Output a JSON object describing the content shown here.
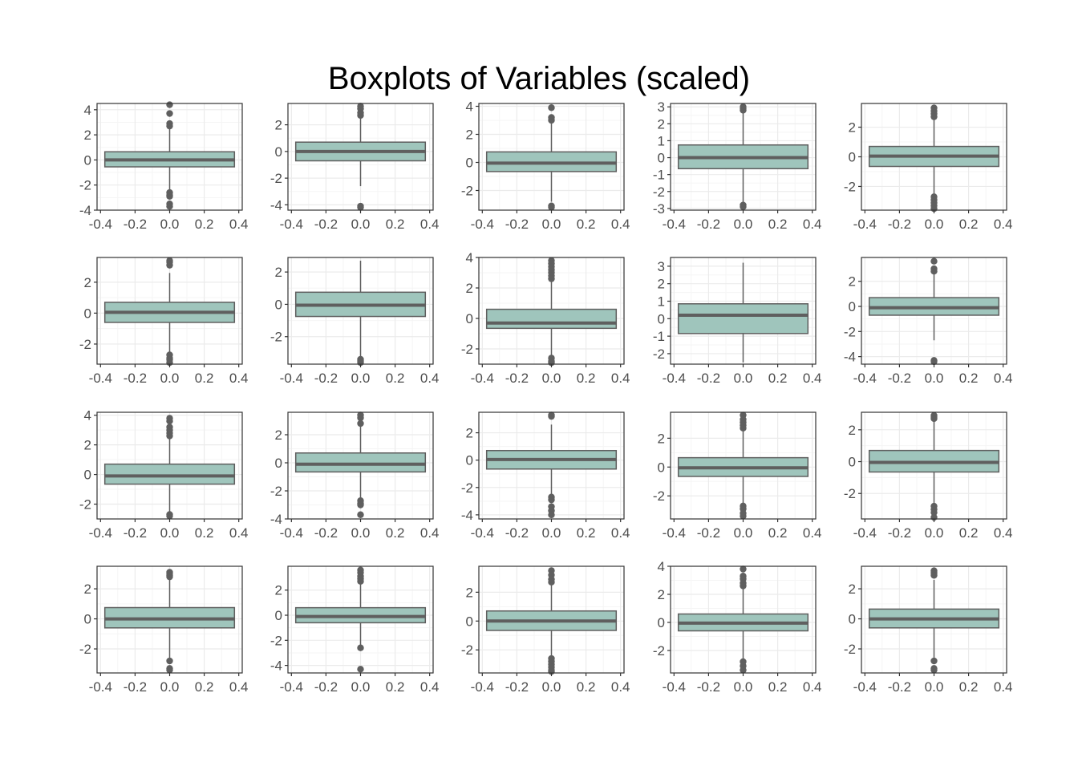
{
  "title": "Boxplots of Variables (scaled)",
  "colors": {
    "box_fill": "#9fc5bc",
    "box_stroke": "#5f5f5f",
    "panel_border": "#333333",
    "grid_major": "#ebebeb",
    "grid_minor": "#f5f5f5",
    "tick_label": "#4d4d4d"
  },
  "chart_data": [
    {
      "type": "boxplot",
      "x_ticks": [
        "-0.4",
        "-0.2",
        "0.0",
        "0.2",
        "0.4"
      ],
      "xlim": [
        -0.42,
        0.42
      ],
      "ylim": [
        -4.0,
        4.5
      ],
      "y_ticks": [
        -4,
        -2,
        0,
        2,
        4
      ],
      "y_tick_labels": [
        "-4",
        "-2",
        "0",
        "2",
        "4"
      ],
      "q1": -0.55,
      "median": 0.0,
      "q3": 0.65,
      "whisker_low": -2.5,
      "whisker_high": 2.5,
      "outliers": [
        4.4,
        3.7,
        2.9,
        2.7,
        -2.6,
        -2.8,
        -2.9,
        -3.5,
        -3.7
      ]
    },
    {
      "type": "boxplot",
      "x_ticks": [
        "-0.4",
        "-0.2",
        "0.0",
        "0.2",
        "0.4"
      ],
      "xlim": [
        -0.42,
        0.42
      ],
      "ylim": [
        -4.4,
        3.6
      ],
      "y_ticks": [
        -4,
        -2,
        0,
        2
      ],
      "y_tick_labels": [
        "-4",
        "-2",
        "0",
        "2"
      ],
      "q1": -0.7,
      "median": 0.0,
      "q3": 0.7,
      "whisker_low": -2.6,
      "whisker_high": 2.5,
      "outliers": [
        3.4,
        3.2,
        2.9,
        2.7,
        -4.1,
        -4.2
      ]
    },
    {
      "type": "boxplot",
      "x_ticks": [
        "-0.4",
        "-0.2",
        "0.0",
        "0.2",
        "0.4"
      ],
      "xlim": [
        -0.42,
        0.42
      ],
      "ylim": [
        -3.4,
        4.2
      ],
      "y_ticks": [
        -2,
        0,
        2,
        4
      ],
      "y_tick_labels": [
        "-2",
        "0",
        "2",
        "4"
      ],
      "q1": -0.65,
      "median": -0.05,
      "q3": 0.75,
      "whisker_low": -2.8,
      "whisker_high": 2.8,
      "outliers": [
        3.9,
        3.2,
        3.0,
        -3.1,
        -3.2
      ]
    },
    {
      "type": "boxplot",
      "x_ticks": [
        "-0.4",
        "-0.2",
        "0.0",
        "0.2",
        "0.4"
      ],
      "xlim": [
        -0.42,
        0.42
      ],
      "ylim": [
        -3.1,
        3.2
      ],
      "y_ticks": [
        -3,
        -2,
        -1,
        0,
        1,
        2,
        3
      ],
      "y_tick_labels": [
        "-3",
        "-2",
        "-1",
        "0",
        "1",
        "2",
        "3"
      ],
      "q1": -0.65,
      "median": 0.0,
      "q3": 0.75,
      "whisker_low": -2.7,
      "whisker_high": 2.7,
      "outliers": [
        3.0,
        2.9,
        2.8,
        -2.8,
        -2.9
      ]
    },
    {
      "type": "boxplot",
      "x_ticks": [
        "-0.4",
        "-0.2",
        "0.0",
        "0.2",
        "0.4"
      ],
      "xlim": [
        -0.42,
        0.42
      ],
      "ylim": [
        -3.6,
        3.6
      ],
      "y_ticks": [
        -2,
        0,
        2
      ],
      "y_tick_labels": [
        "-2",
        "0",
        "2"
      ],
      "q1": -0.65,
      "median": 0.05,
      "q3": 0.7,
      "whisker_low": -2.6,
      "whisker_high": 2.6,
      "outliers": [
        3.3,
        3.1,
        2.9,
        2.7,
        -2.7,
        -2.9,
        -3.1,
        -3.3,
        -3.5
      ]
    },
    {
      "type": "boxplot",
      "x_ticks": [
        "-0.4",
        "-0.2",
        "0.0",
        "0.2",
        "0.4"
      ],
      "xlim": [
        -0.42,
        0.42
      ],
      "ylim": [
        -3.3,
        3.6
      ],
      "y_ticks": [
        -2,
        0,
        2
      ],
      "y_tick_labels": [
        "-2",
        "0",
        "2"
      ],
      "q1": -0.6,
      "median": 0.05,
      "q3": 0.7,
      "whisker_low": -2.6,
      "whisker_high": 2.6,
      "outliers": [
        3.4,
        3.3,
        3.1,
        -2.7,
        -2.9,
        -3.0,
        -3.2
      ]
    },
    {
      "type": "boxplot",
      "x_ticks": [
        "-0.4",
        "-0.2",
        "0.0",
        "0.2",
        "0.4"
      ],
      "xlim": [
        -0.42,
        0.42
      ],
      "ylim": [
        -3.7,
        2.9
      ],
      "y_ticks": [
        -2,
        0,
        2
      ],
      "y_tick_labels": [
        "-2",
        "0",
        "2"
      ],
      "q1": -0.75,
      "median": -0.05,
      "q3": 0.75,
      "whisker_low": -3.3,
      "whisker_high": 2.7,
      "outliers": [
        -3.4,
        -3.5,
        -3.6
      ]
    },
    {
      "type": "boxplot",
      "x_ticks": [
        "-0.4",
        "-0.2",
        "0.0",
        "0.2",
        "0.4"
      ],
      "xlim": [
        -0.42,
        0.42
      ],
      "ylim": [
        -3.0,
        4.0
      ],
      "y_ticks": [
        -2,
        0,
        2,
        4
      ],
      "y_tick_labels": [
        "-2",
        "0",
        "2",
        "4"
      ],
      "q1": -0.65,
      "median": -0.3,
      "q3": 0.6,
      "whisker_low": -2.5,
      "whisker_high": 2.4,
      "outliers": [
        3.8,
        3.6,
        3.4,
        3.2,
        3.0,
        2.8,
        2.6,
        -2.6,
        -2.8,
        -2.9
      ]
    },
    {
      "type": "boxplot",
      "x_ticks": [
        "-0.4",
        "-0.2",
        "0.0",
        "0.2",
        "0.4"
      ],
      "xlim": [
        -0.42,
        0.42
      ],
      "ylim": [
        -2.6,
        3.5
      ],
      "y_ticks": [
        -2,
        -1,
        0,
        1,
        2,
        3
      ],
      "y_tick_labels": [
        "-2",
        "-1",
        "0",
        "1",
        "2",
        "3"
      ],
      "q1": -0.85,
      "median": 0.2,
      "q3": 0.85,
      "whisker_low": -2.5,
      "whisker_high": 3.2,
      "outliers": []
    },
    {
      "type": "boxplot",
      "x_ticks": [
        "-0.4",
        "-0.2",
        "0.0",
        "0.2",
        "0.4"
      ],
      "xlim": [
        -0.42,
        0.42
      ],
      "ylim": [
        -4.6,
        3.9
      ],
      "y_ticks": [
        -4,
        -2,
        0,
        2
      ],
      "y_tick_labels": [
        "-4",
        "-2",
        "0",
        "2"
      ],
      "q1": -0.7,
      "median": -0.1,
      "q3": 0.7,
      "whisker_low": -2.7,
      "whisker_high": 2.6,
      "outliers": [
        3.6,
        3.0,
        2.8,
        -4.3,
        -4.4
      ]
    },
    {
      "type": "boxplot",
      "x_ticks": [
        "-0.4",
        "-0.2",
        "0.0",
        "0.2",
        "0.4"
      ],
      "xlim": [
        -0.42,
        0.42
      ],
      "ylim": [
        -3.0,
        4.2
      ],
      "y_ticks": [
        -2,
        0,
        2,
        4
      ],
      "y_tick_labels": [
        "-2",
        "0",
        "2",
        "4"
      ],
      "q1": -0.65,
      "median": -0.1,
      "q3": 0.7,
      "whisker_low": -2.5,
      "whisker_high": 2.5,
      "outliers": [
        3.8,
        3.6,
        3.2,
        3.0,
        2.8,
        2.6,
        -2.7,
        -2.8
      ]
    },
    {
      "type": "boxplot",
      "x_ticks": [
        "-0.4",
        "-0.2",
        "0.0",
        "0.2",
        "0.4"
      ],
      "xlim": [
        -0.42,
        0.42
      ],
      "ylim": [
        -4.0,
        3.6
      ],
      "y_ticks": [
        -4,
        -2,
        0,
        2
      ],
      "y_tick_labels": [
        "-4",
        "-2",
        "0",
        "2"
      ],
      "q1": -0.65,
      "median": -0.1,
      "q3": 0.7,
      "whisker_low": -2.6,
      "whisker_high": 2.6,
      "outliers": [
        3.4,
        3.2,
        2.8,
        -2.7,
        -2.9,
        -3.0,
        -3.7
      ]
    },
    {
      "type": "boxplot",
      "x_ticks": [
        "-0.4",
        "-0.2",
        "0.0",
        "0.2",
        "0.4"
      ],
      "xlim": [
        -0.42,
        0.42
      ],
      "ylim": [
        -4.3,
        3.5
      ],
      "y_ticks": [
        -4,
        -2,
        0,
        2
      ],
      "y_tick_labels": [
        "-4",
        "-2",
        "0",
        "2"
      ],
      "q1": -0.65,
      "median": 0.05,
      "q3": 0.7,
      "whisker_low": -2.6,
      "whisker_high": 2.6,
      "outliers": [
        3.3,
        3.2,
        -2.7,
        -2.9,
        -3.4,
        -3.7,
        -4.0
      ]
    },
    {
      "type": "boxplot",
      "x_ticks": [
        "-0.4",
        "-0.2",
        "0.0",
        "0.2",
        "0.4"
      ],
      "xlim": [
        -0.42,
        0.42
      ],
      "ylim": [
        -3.6,
        3.8
      ],
      "y_ticks": [
        -2,
        0,
        2
      ],
      "y_tick_labels": [
        "-2",
        "0",
        "2"
      ],
      "q1": -0.65,
      "median": -0.05,
      "q3": 0.65,
      "whisker_low": -2.6,
      "whisker_high": 2.6,
      "outliers": [
        3.6,
        3.3,
        3.1,
        2.9,
        2.7,
        -2.7,
        -2.9,
        -3.2,
        -3.4
      ]
    },
    {
      "type": "boxplot",
      "x_ticks": [
        "-0.4",
        "-0.2",
        "0.0",
        "0.2",
        "0.4"
      ],
      "xlim": [
        -0.42,
        0.42
      ],
      "ylim": [
        -3.6,
        3.1
      ],
      "y_ticks": [
        -2,
        0,
        2
      ],
      "y_tick_labels": [
        "-2",
        "0",
        "2"
      ],
      "q1": -0.65,
      "median": -0.05,
      "q3": 0.7,
      "whisker_low": -2.6,
      "whisker_high": 2.6,
      "outliers": [
        2.9,
        2.8,
        2.7,
        -2.8,
        -3.0,
        -3.2,
        -3.5
      ]
    },
    {
      "type": "boxplot",
      "x_ticks": [
        "-0.4",
        "-0.2",
        "0.0",
        "0.2",
        "0.4"
      ],
      "xlim": [
        -0.42,
        0.42
      ],
      "ylim": [
        -3.6,
        3.5
      ],
      "y_ticks": [
        -2,
        0,
        2
      ],
      "y_tick_labels": [
        "-2",
        "0",
        "2"
      ],
      "q1": -0.6,
      "median": 0.0,
      "q3": 0.75,
      "whisker_low": -2.6,
      "whisker_high": 2.6,
      "outliers": [
        3.1,
        3.0,
        2.9,
        2.8,
        -2.8,
        -3.3,
        -3.4
      ]
    },
    {
      "type": "boxplot",
      "x_ticks": [
        "-0.4",
        "-0.2",
        "0.0",
        "0.2",
        "0.4"
      ],
      "xlim": [
        -0.42,
        0.42
      ],
      "ylim": [
        -4.6,
        3.9
      ],
      "y_ticks": [
        -4,
        -2,
        0,
        2
      ],
      "y_tick_labels": [
        "-4",
        "-2",
        "0",
        "2"
      ],
      "q1": -0.6,
      "median": -0.1,
      "q3": 0.6,
      "whisker_low": -2.6,
      "whisker_high": 2.6,
      "outliers": [
        3.6,
        3.4,
        3.1,
        2.9,
        2.7,
        -2.6,
        -4.3
      ]
    },
    {
      "type": "boxplot",
      "x_ticks": [
        "-0.4",
        "-0.2",
        "0.0",
        "0.2",
        "0.4"
      ],
      "xlim": [
        -0.42,
        0.42
      ],
      "ylim": [
        -3.6,
        3.8
      ],
      "y_ticks": [
        -2,
        0,
        2
      ],
      "y_tick_labels": [
        "-2",
        "0",
        "2"
      ],
      "q1": -0.65,
      "median": 0.0,
      "q3": 0.7,
      "whisker_low": -2.5,
      "whisker_high": 2.5,
      "outliers": [
        3.5,
        3.2,
        2.9,
        2.7,
        -2.6,
        -2.8,
        -3.0,
        -3.2,
        -3.4,
        -3.5
      ]
    },
    {
      "type": "boxplot",
      "x_ticks": [
        "-0.4",
        "-0.2",
        "0.0",
        "0.2",
        "0.4"
      ],
      "xlim": [
        -0.42,
        0.42
      ],
      "ylim": [
        -3.6,
        4.0
      ],
      "y_ticks": [
        -2,
        0,
        2,
        4
      ],
      "y_tick_labels": [
        "-2",
        "0",
        "2",
        "4"
      ],
      "q1": -0.6,
      "median": -0.05,
      "q3": 0.6,
      "whisker_low": -2.6,
      "whisker_high": 2.6,
      "outliers": [
        3.8,
        3.3,
        3.1,
        2.8,
        2.6,
        -2.8,
        -3.1,
        -3.4
      ]
    },
    {
      "type": "boxplot",
      "x_ticks": [
        "-0.4",
        "-0.2",
        "0.0",
        "0.2",
        "0.4"
      ],
      "xlim": [
        -0.42,
        0.42
      ],
      "ylim": [
        -3.6,
        3.5
      ],
      "y_ticks": [
        -2,
        0,
        2
      ],
      "y_tick_labels": [
        "-2",
        "0",
        "2"
      ],
      "q1": -0.6,
      "median": 0.0,
      "q3": 0.65,
      "whisker_low": -2.6,
      "whisker_high": 2.6,
      "outliers": [
        3.2,
        3.1,
        3.0,
        2.9,
        -2.8,
        -3.3,
        -3.4
      ]
    }
  ]
}
